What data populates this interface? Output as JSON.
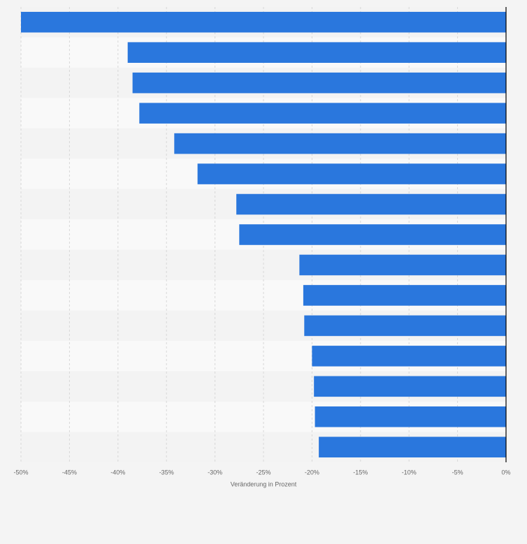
{
  "chart_data": {
    "type": "barh",
    "categories": [
      null,
      null,
      null,
      null,
      null,
      null,
      null,
      null,
      null,
      null,
      null,
      null,
      null,
      null,
      null
    ],
    "values": [
      -50,
      -39,
      -38.5,
      -37.8,
      -34.2,
      -31.8,
      -27.8,
      -27.5,
      -21.3,
      -20.9,
      -20.8,
      -20,
      -19.8,
      -19.7,
      -19.3
    ],
    "color": "#2a77dd",
    "xlim": [
      -50,
      0
    ],
    "xticks": [
      {
        "value": -50,
        "label": "-50%"
      },
      {
        "value": -45,
        "label": "-45%"
      },
      {
        "value": -40,
        "label": "-40%"
      },
      {
        "value": -35,
        "label": "-35%"
      },
      {
        "value": -30,
        "label": "-30%"
      },
      {
        "value": -25,
        "label": "-25%"
      },
      {
        "value": -20,
        "label": "-20%"
      },
      {
        "value": -15,
        "label": "-15%"
      },
      {
        "value": -10,
        "label": "-10%"
      },
      {
        "value": -5,
        "label": "-5%"
      },
      {
        "value": 0,
        "label": "0%"
      }
    ],
    "xlabel": "Veränderung in Prozent",
    "grid": true
  }
}
